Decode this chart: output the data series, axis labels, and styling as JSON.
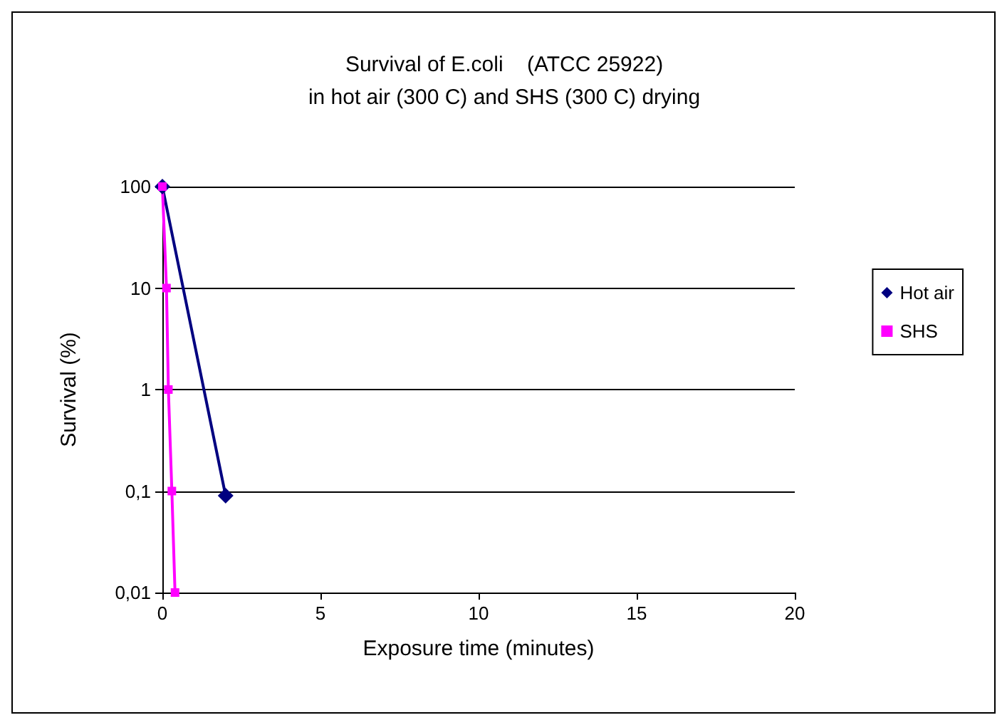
{
  "chart_data": {
    "type": "line",
    "title": "Survival of E.coli    (ATCC 25922)\nin hot air (300 C) and SHS (300 C) drying",
    "xlabel": "Exposure time (minutes)",
    "ylabel": "Survival (%)",
    "log": "y",
    "xlim": [
      0,
      20
    ],
    "xticks": [
      0,
      5,
      10,
      15,
      20
    ],
    "ylim": [
      0.01,
      100
    ],
    "yticks": [
      {
        "value": 0.01,
        "label": "0,01"
      },
      {
        "value": 0.1,
        "label": "0,1"
      },
      1,
      10,
      100
    ],
    "grid": "y",
    "legend": "right",
    "series": [
      {
        "name": "Hot air",
        "color": "#000080",
        "marker": "diamond",
        "x": [
          0,
          2
        ],
        "values": [
          100,
          0.09
        ]
      },
      {
        "name": "SHS",
        "color": "#ff00ff",
        "marker": "square",
        "x": [
          0,
          0.13,
          0.19,
          0.3,
          0.4
        ],
        "values": [
          100,
          10,
          1,
          0.1,
          0.01
        ]
      }
    ]
  }
}
